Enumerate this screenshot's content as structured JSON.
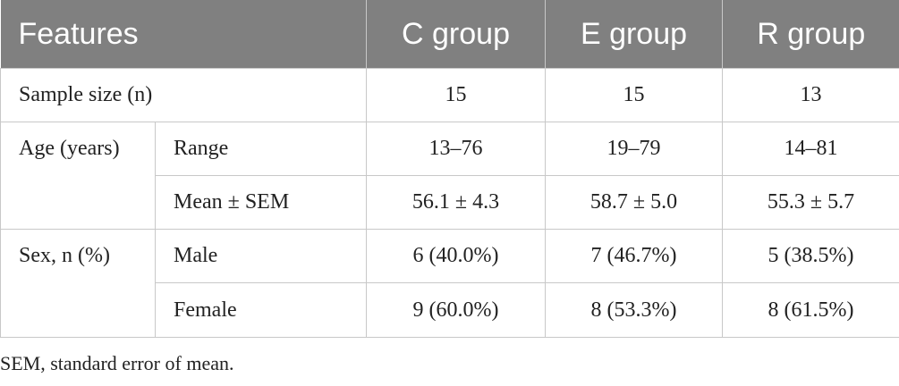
{
  "headers": [
    "Features",
    "C group",
    "E group",
    "R group"
  ],
  "rows": {
    "sample": {
      "label": "Sample size (n)",
      "c": "15",
      "e": "15",
      "r": "13"
    },
    "age": {
      "label": "Age (years)",
      "range": {
        "label": "Range",
        "c": "13–76",
        "e": "19–79",
        "r": "14–81"
      },
      "mean": {
        "label": "Mean ± SEM",
        "c": "56.1 ± 4.3",
        "e": "58.7 ± 5.0",
        "r": "55.3 ± 5.7"
      }
    },
    "sex": {
      "label": "Sex, n (%)",
      "male": {
        "label": "Male",
        "c": "6 (40.0%)",
        "e": "7 (46.7%)",
        "r": "5 (38.5%)"
      },
      "female": {
        "label": "Female",
        "c": "9 (60.0%)",
        "e": "8 (53.3%)",
        "r": "8 (61.5%)"
      }
    }
  },
  "footnote": "SEM, standard error of mean."
}
